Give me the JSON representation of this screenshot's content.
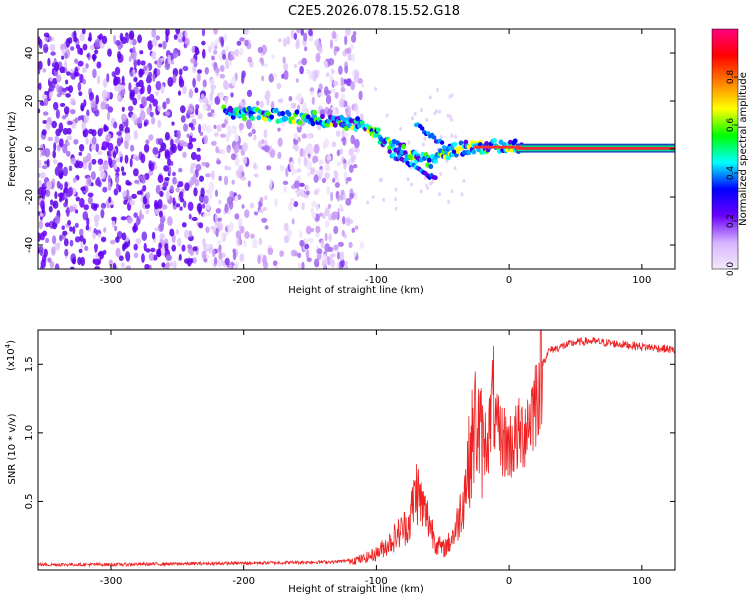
{
  "title": "C2E5.2026.078.15.52.G18",
  "chart_data": [
    {
      "type": "heatmap",
      "xlabel": "Height of straight line (km)",
      "ylabel": "Frequency (Hz)",
      "xlim": [
        -355,
        125
      ],
      "ylim": [
        -50,
        50
      ],
      "xticks": [
        -300,
        -200,
        -100,
        0,
        100
      ],
      "yticks": [
        -40,
        -20,
        0,
        20,
        40
      ],
      "colorbar": {
        "label": "Normalized spectral amplitude",
        "ticks": [
          "0.0",
          "0.2",
          "0.4",
          "0.6",
          "0.8"
        ],
        "tick_values": [
          0.0,
          0.2,
          0.4,
          0.6,
          0.8
        ],
        "range": [
          0,
          1
        ],
        "colors": [
          "#f4e9fb",
          "#d6b3ff",
          "#6a00ff",
          "#0000ff",
          "#00ffff",
          "#00ff00",
          "#ffff00",
          "#ff8000",
          "#ff0000",
          "#ff0080"
        ]
      },
      "features": {
        "noise_region_x": [
          -355,
          -110
        ],
        "tone_track": [
          {
            "x": -215,
            "y": 15
          },
          {
            "x": -150,
            "y": 13
          },
          {
            "x": -110,
            "y": 10
          },
          {
            "x": -90,
            "y": 2
          },
          {
            "x": -60,
            "y": -5
          },
          {
            "x": -40,
            "y": 0
          },
          {
            "x": -20,
            "y": 1
          },
          {
            "x": 0,
            "y": 1
          },
          {
            "x": 125,
            "y": 0
          }
        ]
      }
    },
    {
      "type": "line",
      "xlabel": "Height of straight line (km)",
      "ylabel": "SNR (10 * v/v)",
      "scale_label": "(x10",
      "scale_exp": "4",
      "scale_close": ")",
      "xlim": [
        -355,
        125
      ],
      "ylim": [
        0,
        1.75
      ],
      "xticks": [
        -300,
        -200,
        -100,
        0,
        100
      ],
      "yticks": [
        0.5,
        1.0,
        1.5
      ],
      "ytick_labels": [
        "0.5",
        "1.0",
        "1.5"
      ],
      "color": "#ee2222",
      "series": [
        {
          "name": "SNR",
          "x": [
            -355,
            -300,
            -200,
            -130,
            -110,
            -100,
            -90,
            -75,
            -70,
            -65,
            -60,
            -55,
            -50,
            -45,
            -40,
            -35,
            -30,
            -25,
            -20,
            -15,
            -12,
            -10,
            -5,
            0,
            5,
            10,
            15,
            20,
            25,
            30,
            40,
            50,
            60,
            70,
            80,
            90,
            100,
            110,
            120,
            125
          ],
          "y": [
            0.04,
            0.04,
            0.05,
            0.06,
            0.08,
            0.12,
            0.2,
            0.35,
            0.6,
            0.45,
            0.35,
            0.2,
            0.15,
            0.2,
            0.3,
            0.5,
            0.8,
            1.1,
            0.9,
            1.0,
            1.3,
            1.0,
            0.95,
            0.9,
            0.95,
            1.0,
            1.1,
            1.25,
            1.5,
            1.6,
            1.63,
            1.66,
            1.67,
            1.66,
            1.65,
            1.64,
            1.63,
            1.62,
            1.61,
            1.6
          ]
        }
      ]
    }
  ]
}
